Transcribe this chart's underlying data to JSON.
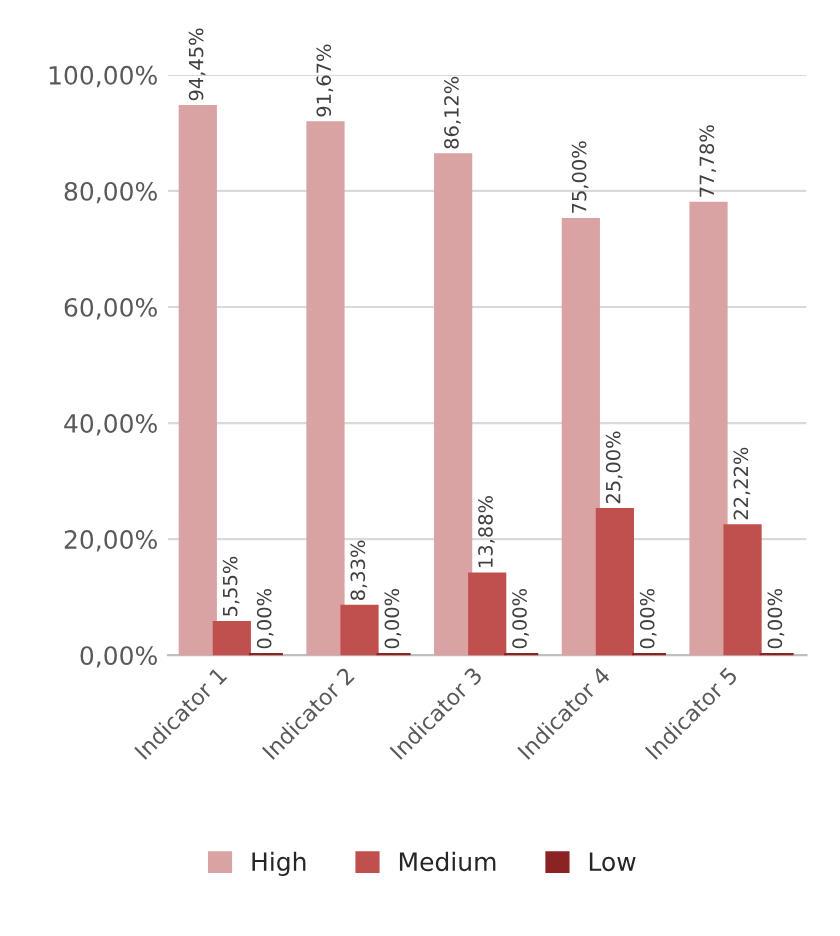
{
  "chart_data": {
    "type": "bar",
    "categories": [
      "Indicator 1",
      "Indicator 2",
      "Indicator 3",
      "Indicator 4",
      "Indicator 5"
    ],
    "series": [
      {
        "name": "High",
        "color": "#d9a3a3",
        "values": [
          94.45,
          91.67,
          86.12,
          75.0,
          77.78
        ],
        "value_labels": [
          "94,45%",
          "91,67%",
          "86,12%",
          "75,00%",
          "77,78%"
        ]
      },
      {
        "name": "Medium",
        "color": "#c0504d",
        "values": [
          5.55,
          8.33,
          13.88,
          25.0,
          22.22
        ],
        "value_labels": [
          "5,55%",
          "8,33%",
          "13,88%",
          "25,00%",
          "22,22%"
        ]
      },
      {
        "name": "Low",
        "color": "#8b2323",
        "values": [
          0,
          0,
          0,
          0,
          0
        ],
        "value_labels": [
          "0,00%",
          "0,00%",
          "0,00%",
          "0,00%",
          "0,00%"
        ]
      }
    ],
    "ylim": [
      0,
      100
    ],
    "yticks": [
      {
        "value": 0,
        "label": "0,00%"
      },
      {
        "value": 20,
        "label": "20,00%"
      },
      {
        "value": 40,
        "label": "40,00%"
      },
      {
        "value": 60,
        "label": "60,00%"
      },
      {
        "value": 80,
        "label": "80,00%"
      },
      {
        "value": 100,
        "label": "100,00%"
      }
    ],
    "grid": "y",
    "legend": "bottom"
  }
}
